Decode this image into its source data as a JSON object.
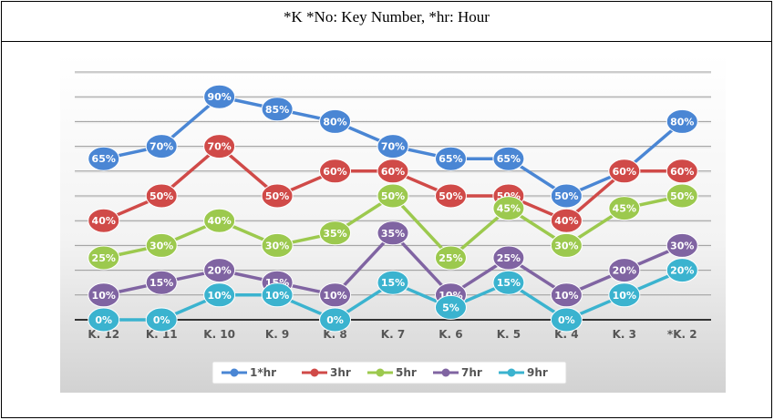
{
  "caption": "*K *No: Key Number, *hr: Hour",
  "chart_data": {
    "type": "line",
    "categories": [
      "K. 12",
      "K. 11",
      "K. 10",
      "K. 9",
      "K. 8",
      "K. 7",
      "K. 6",
      "K. 5",
      "K. 4",
      "K. 3",
      "*K. 2"
    ],
    "ylim": [
      0,
      100
    ],
    "grid": true,
    "legend": "bottom",
    "series": [
      {
        "name": "1*hr",
        "color": "#4a86d4",
        "values": [
          65,
          70,
          90,
          85,
          80,
          70,
          65,
          65,
          50,
          60,
          80
        ]
      },
      {
        "name": "3hr",
        "color": "#d04a48",
        "values": [
          40,
          50,
          70,
          50,
          60,
          60,
          50,
          50,
          40,
          60,
          60
        ]
      },
      {
        "name": "5hr",
        "color": "#9cc94e",
        "values": [
          25,
          30,
          40,
          30,
          35,
          50,
          25,
          45,
          30,
          45,
          50
        ]
      },
      {
        "name": "7hr",
        "color": "#8064a2",
        "values": [
          10,
          15,
          20,
          15,
          10,
          35,
          10,
          25,
          10,
          20,
          30
        ]
      },
      {
        "name": "9hr",
        "color": "#3bb3cf",
        "values": [
          0,
          0,
          10,
          10,
          0,
          15,
          5,
          15,
          0,
          10,
          20
        ]
      }
    ]
  }
}
